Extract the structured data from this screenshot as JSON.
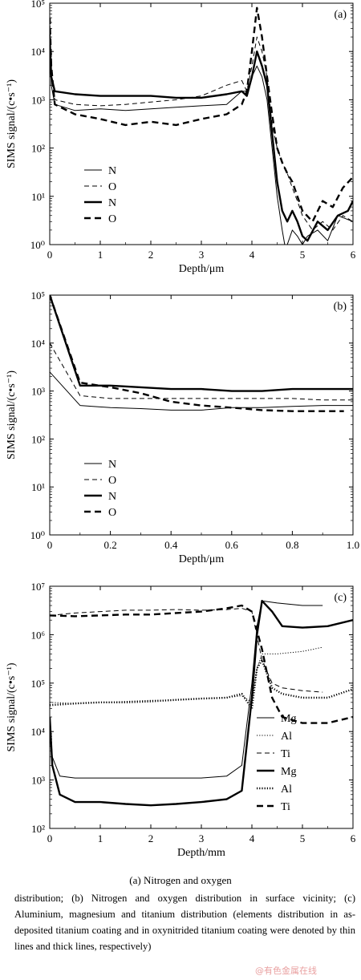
{
  "chart_data": [
    {
      "type": "line",
      "panel_label": "(a)",
      "xlabel": "Depth/μm",
      "ylabel": "SIMS signal/(c•s⁻¹)",
      "xlim": [
        0,
        6
      ],
      "ylim": [
        1,
        100000
      ],
      "yscale": "log",
      "xticks": [
        "0",
        "1",
        "2",
        "3",
        "4",
        "5",
        "6"
      ],
      "yticks": [
        "10⁰",
        "10¹",
        "10²",
        "10³",
        "10⁴",
        "10⁵"
      ],
      "legend_position": "center-left",
      "series": [
        {
          "name": "N",
          "style": "thin-solid",
          "x": [
            0,
            0.03,
            0.1,
            0.5,
            1,
            1.5,
            2,
            2.5,
            3,
            3.5,
            3.8,
            3.9,
            4.0,
            4.1,
            4.2,
            4.3,
            4.4,
            4.5,
            4.6,
            4.65,
            4.7,
            4.8,
            4.9,
            5.0,
            5.1,
            5.3,
            5.5,
            5.7,
            6.0
          ],
          "y": [
            20000,
            2000,
            800,
            600,
            650,
            600,
            650,
            700,
            750,
            800,
            1500,
            1500,
            3000,
            5000,
            3000,
            1000,
            100,
            10,
            2,
            1,
            1,
            2,
            1.5,
            1,
            1.5,
            2,
            1.2,
            4,
            3
          ]
        },
        {
          "name": "O",
          "style": "thin-dashed",
          "x": [
            0,
            0.03,
            0.1,
            0.5,
            1,
            1.5,
            2,
            2.5,
            3,
            3.5,
            3.8,
            3.9,
            4.0,
            4.1,
            4.2,
            4.3,
            4.4,
            4.5,
            4.6,
            4.7,
            4.8,
            4.9,
            5.0,
            5.2,
            5.4,
            5.6,
            5.8,
            6.0
          ],
          "y": [
            50000,
            3000,
            1000,
            800,
            750,
            800,
            900,
            1000,
            1200,
            2000,
            2500,
            1500,
            5000,
            20000,
            10000,
            3000,
            300,
            100,
            50,
            30,
            15,
            8,
            4,
            2,
            3,
            2,
            4,
            3
          ]
        },
        {
          "name": "N",
          "style": "thick-solid",
          "x": [
            0,
            0.03,
            0.1,
            0.5,
            1,
            1.5,
            2,
            2.5,
            3,
            3.5,
            3.8,
            3.9,
            4.0,
            4.1,
            4.2,
            4.3,
            4.4,
            4.5,
            4.6,
            4.7,
            4.8,
            4.9,
            5.0,
            5.1,
            5.3,
            5.5,
            5.7,
            5.9,
            6.0
          ],
          "y": [
            20000,
            3000,
            1500,
            1300,
            1200,
            1200,
            1200,
            1100,
            1100,
            1300,
            1500,
            1200,
            3000,
            10000,
            5000,
            2000,
            200,
            20,
            5,
            3,
            5,
            3,
            1.5,
            1.2,
            3,
            2,
            4,
            5,
            8
          ]
        },
        {
          "name": "O",
          "style": "thick-dashed",
          "x": [
            0,
            0.03,
            0.1,
            0.5,
            1,
            1.5,
            2,
            2.5,
            3,
            3.5,
            3.8,
            3.9,
            4.0,
            4.1,
            4.2,
            4.3,
            4.4,
            4.5,
            4.6,
            4.7,
            4.8,
            4.9,
            5.0,
            5.2,
            5.4,
            5.6,
            5.8,
            6.0
          ],
          "y": [
            50000,
            5000,
            800,
            500,
            400,
            300,
            350,
            300,
            400,
            500,
            800,
            1500,
            10000,
            80000,
            20000,
            3000,
            500,
            100,
            50,
            30,
            20,
            10,
            5,
            3,
            8,
            6,
            15,
            25
          ]
        }
      ]
    },
    {
      "type": "line",
      "panel_label": "(b)",
      "xlabel": "Depth/μm",
      "ylabel": "SIMS signal/(c•s⁻¹)",
      "xlim": [
        0,
        1.0
      ],
      "ylim": [
        1,
        100000
      ],
      "yscale": "log",
      "xticks": [
        "0",
        "0.2",
        "0.4",
        "0.6",
        "0.8",
        "1.0"
      ],
      "yticks": [
        "10⁰",
        "10¹",
        "10²",
        "10³",
        "10⁴",
        "10⁵"
      ],
      "legend_position": "center-left",
      "series": [
        {
          "name": "N",
          "style": "thin-solid",
          "x": [
            0,
            0.1,
            0.2,
            0.3,
            0.4,
            0.5,
            0.6,
            0.7,
            0.8,
            0.9,
            1.0
          ],
          "y": [
            2500,
            500,
            450,
            430,
            400,
            400,
            450,
            450,
            480,
            500,
            500
          ]
        },
        {
          "name": "O",
          "style": "thin-dashed",
          "x": [
            0,
            0.1,
            0.2,
            0.3,
            0.4,
            0.5,
            0.6,
            0.7,
            0.8,
            0.9,
            1.0
          ],
          "y": [
            10000,
            800,
            700,
            700,
            700,
            700,
            700,
            700,
            700,
            650,
            650
          ]
        },
        {
          "name": "N",
          "style": "thick-solid",
          "x": [
            0,
            0.1,
            0.2,
            0.3,
            0.4,
            0.5,
            0.6,
            0.7,
            0.8,
            0.9,
            1.0
          ],
          "y": [
            100000,
            1300,
            1300,
            1200,
            1100,
            1100,
            1000,
            1000,
            1100,
            1100,
            1100
          ]
        },
        {
          "name": "O",
          "style": "thick-dashed",
          "x": [
            0,
            0.1,
            0.2,
            0.3,
            0.4,
            0.5,
            0.6,
            0.7,
            0.8,
            0.9,
            0.97
          ],
          "y": [
            100000,
            1500,
            1200,
            900,
            600,
            500,
            450,
            400,
            380,
            380,
            380
          ]
        }
      ]
    },
    {
      "type": "line",
      "panel_label": "(c)",
      "xlabel": "Depth/mm",
      "ylabel": "SIMS signal/(c•s⁻¹)",
      "xlim": [
        0,
        6
      ],
      "ylim": [
        100,
        10000000
      ],
      "yscale": "log",
      "xticks": [
        "0",
        "1",
        "2",
        "3",
        "4",
        "5",
        "6"
      ],
      "yticks": [
        "10²",
        "10³",
        "10⁴",
        "10⁵",
        "10⁶",
        "10⁷"
      ],
      "legend_position": "bottom-right",
      "series": [
        {
          "name": "Mg",
          "style": "thin-solid",
          "x": [
            0,
            0.05,
            0.2,
            0.5,
            1,
            1.5,
            2,
            2.5,
            3,
            3.5,
            3.8,
            4.0,
            4.1,
            4.2,
            4.5,
            5.0,
            5.4
          ],
          "y": [
            20000,
            3000,
            1200,
            1100,
            1100,
            1100,
            1100,
            1100,
            1100,
            1200,
            2000,
            100000,
            1500000,
            5000000,
            4500000,
            4000000,
            4000000
          ]
        },
        {
          "name": "Al",
          "style": "thin-dotted",
          "x": [
            0,
            0.5,
            1,
            1.5,
            2,
            2.5,
            3,
            3.5,
            3.8,
            4.0,
            4.1,
            4.2,
            4.5,
            5.0,
            5.4
          ],
          "y": [
            40000,
            38000,
            40000,
            42000,
            44000,
            45000,
            48000,
            50000,
            55000,
            40000,
            200000,
            400000,
            400000,
            450000,
            550000
          ]
        },
        {
          "name": "Ti",
          "style": "thin-dashed",
          "x": [
            0,
            0.5,
            1,
            1.5,
            2,
            2.5,
            3,
            3.5,
            3.8,
            4.0,
            4.2,
            4.4,
            4.6,
            5.0,
            5.4
          ],
          "y": [
            2500000,
            2800000,
            3000000,
            3200000,
            3200000,
            3300000,
            3200000,
            3300000,
            3500000,
            3000000,
            300000,
            100000,
            80000,
            70000,
            65000
          ]
        },
        {
          "name": "Mg",
          "style": "thick-solid",
          "x": [
            0,
            0.05,
            0.2,
            0.5,
            1,
            1.5,
            2,
            2.5,
            3,
            3.5,
            3.8,
            4.0,
            4.1,
            4.2,
            4.4,
            4.6,
            5.0,
            5.5,
            6.0
          ],
          "y": [
            20000,
            2000,
            500,
            350,
            350,
            320,
            300,
            320,
            350,
            400,
            600,
            50000,
            1000000,
            5000000,
            3000000,
            1500000,
            1400000,
            1500000,
            2000000
          ]
        },
        {
          "name": "Al",
          "style": "thick-dotted",
          "x": [
            0,
            0.5,
            1,
            1.5,
            2,
            2.5,
            3,
            3.5,
            3.8,
            4.0,
            4.1,
            4.2,
            4.4,
            4.6,
            5.0,
            5.5,
            6.0
          ],
          "y": [
            35000,
            38000,
            40000,
            40000,
            42000,
            45000,
            48000,
            50000,
            60000,
            30000,
            200000,
            300000,
            80000,
            60000,
            50000,
            50000,
            75000
          ]
        },
        {
          "name": "Ti",
          "style": "thick-dashed",
          "x": [
            0,
            0.5,
            1,
            1.5,
            2,
            2.5,
            3,
            3.5,
            3.8,
            4.0,
            4.2,
            4.4,
            4.6,
            5.0,
            5.5,
            6.0
          ],
          "y": [
            2500000,
            2400000,
            2500000,
            2600000,
            2600000,
            2800000,
            3000000,
            3500000,
            4000000,
            3000000,
            500000,
            50000,
            20000,
            15000,
            15000,
            20000
          ]
        }
      ]
    }
  ],
  "caption": {
    "heading": "(a)  Nitrogen  and  oxygen",
    "body": "distribution; (b) Nitrogen and oxygen distribution in surface vicinity; (c) Aluminium, magnesium and titanium distribution (elements distribution in as-deposited titanium coating and in oxynitrided titanium coating were denoted by thin lines and thick lines, respectively)"
  },
  "watermark": "@有色金属在线"
}
